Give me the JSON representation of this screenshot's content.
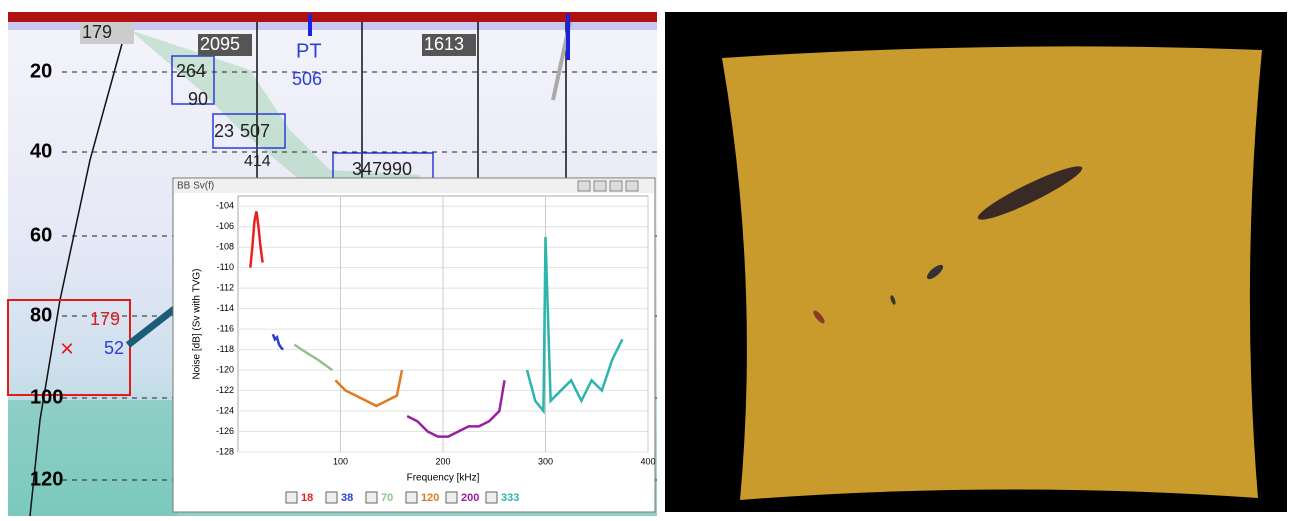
{
  "echogram": {
    "depth_labels": [
      "20",
      "40",
      "60",
      "80",
      "100",
      "120"
    ],
    "labels": [
      "179",
      "2095",
      "1613",
      "PT",
      "506",
      "264",
      "90",
      "23",
      "507",
      "414",
      "347990",
      "179",
      "52"
    ]
  },
  "chart_data": {
    "type": "line",
    "title": "BB Sv(f)",
    "x_label": "Frequency [kHz]",
    "y_label": "Noise [dB] (Sv with TVG)",
    "xlim": [
      0,
      400
    ],
    "xticks": [
      100,
      200,
      300,
      400
    ],
    "ylim": [
      -128,
      -103
    ],
    "yticks": [
      -104,
      -106,
      -108,
      -110,
      -112,
      -114,
      -116,
      -118,
      -120,
      -122,
      -124,
      -126,
      -128
    ],
    "grid": true,
    "series": [
      {
        "name": "18",
        "color": "#e8201e",
        "x": [
          12,
          14,
          16,
          18,
          20,
          22,
          24
        ],
        "values": [
          -110,
          -108,
          -105.5,
          -104.5,
          -106,
          -108,
          -109.5
        ]
      },
      {
        "name": "38",
        "color": "#2a3fd6",
        "x": [
          34,
          36,
          38,
          40,
          42,
          44
        ],
        "values": [
          -116.5,
          -117,
          -116.8,
          -117.5,
          -117.8,
          -118
        ]
      },
      {
        "name": "70",
        "color": "#8fc48a",
        "x": [
          55,
          62,
          70,
          78,
          85,
          92
        ],
        "values": [
          -117.5,
          -118,
          -118.5,
          -119,
          -119.5,
          -120
        ]
      },
      {
        "name": "120",
        "color": "#e07a1f",
        "x": [
          95,
          105,
          115,
          125,
          135,
          145,
          155,
          160
        ],
        "values": [
          -121,
          -122,
          -122.5,
          -123,
          -123.5,
          -123,
          -122.5,
          -120
        ]
      },
      {
        "name": "200",
        "color": "#9a1fa0",
        "x": [
          165,
          175,
          185,
          195,
          205,
          215,
          225,
          235,
          245,
          255,
          260
        ],
        "values": [
          -124.5,
          -125,
          -126,
          -126.5,
          -126.5,
          -126,
          -125.5,
          -125.5,
          -125,
          -124,
          -121
        ]
      },
      {
        "name": "333",
        "color": "#2bb5ad",
        "x": [
          282,
          290,
          298,
          300,
          305,
          315,
          325,
          335,
          345,
          355,
          365,
          375
        ],
        "values": [
          -120,
          -123,
          -124,
          -107,
          -123,
          -122,
          -121,
          -123,
          -121,
          -122,
          -119,
          -117
        ]
      }
    ]
  }
}
